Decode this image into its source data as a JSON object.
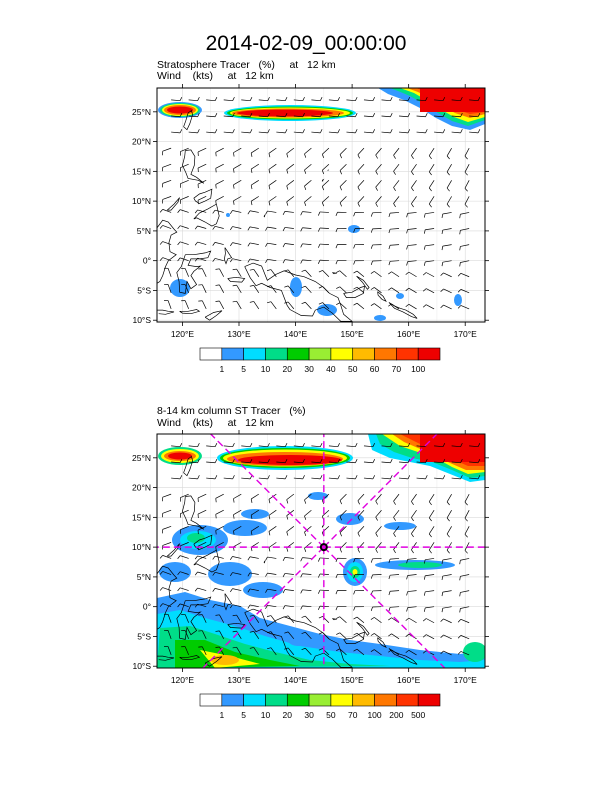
{
  "title": "2014-02-09_00:00:00",
  "panels": [
    {
      "subtitle_line1": "Stratosphere Tracer   (%)     at   12 km",
      "subtitle_line2": "Wind    (kts)     at   12 km",
      "lon_labels": [
        "120°E",
        "130°E",
        "140°E",
        "150°E",
        "160°E",
        "170°E"
      ],
      "lat_labels": [
        "25°N",
        "20°N",
        "15°N",
        "10°N",
        "5°N",
        "0°",
        "5°S",
        "10°S"
      ],
      "colorbar_levels": [
        "1",
        "5",
        "10",
        "20",
        "30",
        "40",
        "50",
        "60",
        "70",
        "100"
      ],
      "colorbar_colors": [
        "#ffffff",
        "#3399ff",
        "#00ddff",
        "#00dd88",
        "#00cc00",
        "#99ee33",
        "#ffff00",
        "#ffbb00",
        "#ff7700",
        "#ff3300",
        "#ee0000"
      ]
    },
    {
      "subtitle_line1": "8-14 km column ST Tracer   (%)",
      "subtitle_line2": "Wind    (kts)     at   12 km",
      "lon_labels": [
        "120°E",
        "130°E",
        "140°E",
        "150°E",
        "160°E",
        "170°E"
      ],
      "lat_labels": [
        "25°N",
        "20°N",
        "15°N",
        "10°N",
        "5°N",
        "0°",
        "5°S",
        "10°S"
      ],
      "colorbar_levels": [
        "1",
        "5",
        "10",
        "20",
        "30",
        "50",
        "70",
        "100",
        "200",
        "500"
      ],
      "colorbar_colors": [
        "#ffffff",
        "#3399ff",
        "#00ddff",
        "#00dd88",
        "#00cc00",
        "#99ee33",
        "#ffff00",
        "#ffbb00",
        "#ff7700",
        "#ff3300",
        "#ee0000"
      ],
      "marker_center": {
        "lon": 145,
        "lat": 10
      }
    }
  ]
}
